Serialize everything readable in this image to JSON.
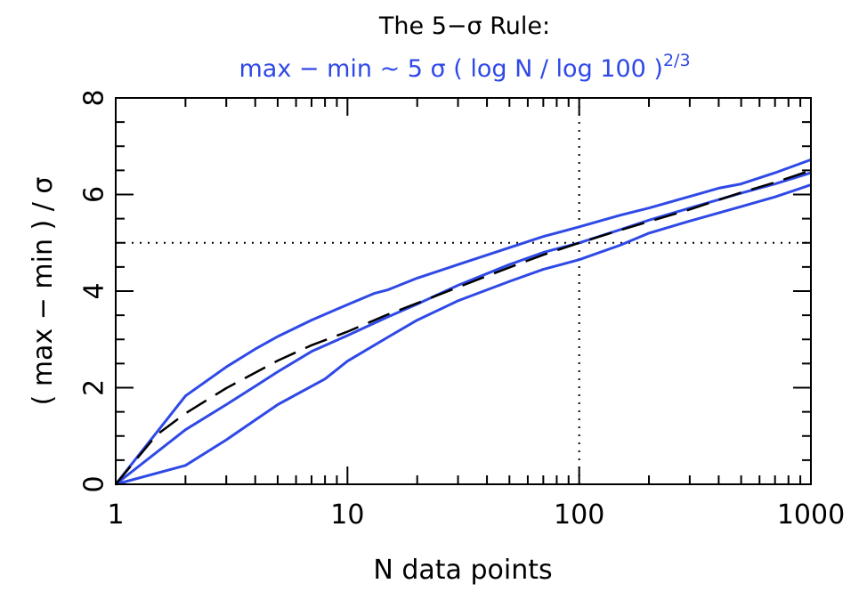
{
  "chart_data": {
    "type": "line",
    "title": "The 5−σ Rule:",
    "subtitle_main": "max − min ~ 5 σ ( log N / log 100 )",
    "subtitle_exponent": "2/3",
    "xlabel": "N data points",
    "ylabel": "( max − min ) / σ",
    "xscale": "log",
    "xlim": [
      1,
      1000
    ],
    "ylim": [
      0,
      8
    ],
    "xticks": [
      {
        "value": 1,
        "label": "1"
      },
      {
        "value": 10,
        "label": "10"
      },
      {
        "value": 100,
        "label": "100"
      },
      {
        "value": 1000,
        "label": "1000"
      }
    ],
    "yticks": [
      {
        "value": 0,
        "label": "0"
      },
      {
        "value": 2,
        "label": "2"
      },
      {
        "value": 4,
        "label": "4"
      },
      {
        "value": 6,
        "label": "6"
      },
      {
        "value": 8,
        "label": "8"
      }
    ],
    "reference_lines": [
      {
        "axis": "x",
        "value": 100,
        "style": "dotted"
      },
      {
        "axis": "y",
        "value": 5,
        "style": "dotted"
      }
    ],
    "series": [
      {
        "style": "solid",
        "color": "#2f49e6",
        "x": [
          1,
          2,
          3,
          4,
          5,
          7,
          10,
          13,
          15,
          20,
          30,
          50,
          70,
          100,
          150,
          200,
          300,
          400,
          500,
          700,
          1000
        ],
        "y": [
          0,
          1.83,
          2.43,
          2.8,
          3.06,
          3.4,
          3.72,
          3.95,
          4.03,
          4.27,
          4.55,
          4.9,
          5.13,
          5.33,
          5.57,
          5.72,
          5.96,
          6.13,
          6.22,
          6.45,
          6.72
        ]
      },
      {
        "style": "solid",
        "color": "#2f49e6",
        "x": [
          1,
          2,
          3,
          4,
          5,
          7,
          10,
          15,
          20,
          30,
          50,
          70,
          100,
          150,
          200,
          300,
          500,
          700,
          1000
        ],
        "y": [
          0,
          1.13,
          1.65,
          2.03,
          2.33,
          2.75,
          3.08,
          3.47,
          3.73,
          4.12,
          4.55,
          4.8,
          5.0,
          5.27,
          5.47,
          5.72,
          6.03,
          6.22,
          6.45
        ]
      },
      {
        "style": "solid",
        "color": "#2f49e6",
        "x": [
          1,
          2,
          3,
          5,
          8,
          10,
          15,
          20,
          30,
          50,
          70,
          100,
          150,
          200,
          300,
          500,
          700,
          1000
        ],
        "y": [
          0,
          0.39,
          0.92,
          1.65,
          2.18,
          2.55,
          3.05,
          3.4,
          3.8,
          4.2,
          4.45,
          4.65,
          4.95,
          5.2,
          5.45,
          5.75,
          5.95,
          6.2
        ]
      },
      {
        "style": "dashed",
        "color": "#000000",
        "x": [
          1,
          1.5,
          2,
          3,
          5,
          7,
          10,
          15,
          20,
          30,
          50,
          70,
          100,
          150,
          200,
          300,
          500,
          700,
          1000
        ],
        "y": [
          0,
          1.02,
          1.47,
          1.99,
          2.56,
          2.88,
          3.16,
          3.52,
          3.75,
          4.08,
          4.49,
          4.75,
          5.0,
          5.26,
          5.44,
          5.69,
          6.04,
          6.25,
          6.5
        ]
      }
    ]
  }
}
